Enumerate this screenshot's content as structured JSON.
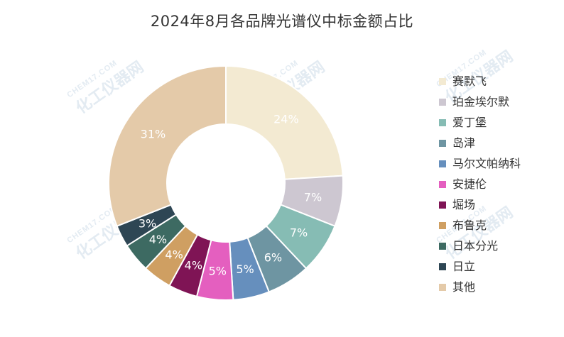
{
  "watermark": {
    "en": "CHEM17.COM",
    "cn": "化工仪器网"
  },
  "chart_data": {
    "type": "pie",
    "title": "2024年8月各品牌光谱仪中标金额占比",
    "value_unit": "%",
    "legend_position": "right",
    "slices": [
      {
        "name": "赛默飞",
        "value": 24,
        "label": "24%",
        "color": "#f3ead2"
      },
      {
        "name": "珀金埃尔默",
        "value": 7,
        "label": "7%",
        "color": "#cdc7d1"
      },
      {
        "name": "爱丁堡",
        "value": 7,
        "label": "7%",
        "color": "#86bcb4"
      },
      {
        "name": "岛津",
        "value": 6,
        "label": "6%",
        "color": "#6e95a2"
      },
      {
        "name": "马尔文帕纳科",
        "value": 5,
        "label": "5%",
        "color": "#668fbd"
      },
      {
        "name": "安捷伦",
        "value": 5,
        "label": "5%",
        "color": "#e45fbf"
      },
      {
        "name": "堀场",
        "value": 4,
        "label": "4%",
        "color": "#7f1455"
      },
      {
        "name": "布鲁克",
        "value": 4,
        "label": "4%",
        "color": "#cf9f62"
      },
      {
        "name": "日本分光",
        "value": 4,
        "label": "4%",
        "color": "#3d6a62"
      },
      {
        "name": "日立",
        "value": 3,
        "label": "3%",
        "color": "#2e4654"
      },
      {
        "name": "其他",
        "value": 31,
        "label": "31%",
        "color": "#e4caa9"
      }
    ]
  }
}
